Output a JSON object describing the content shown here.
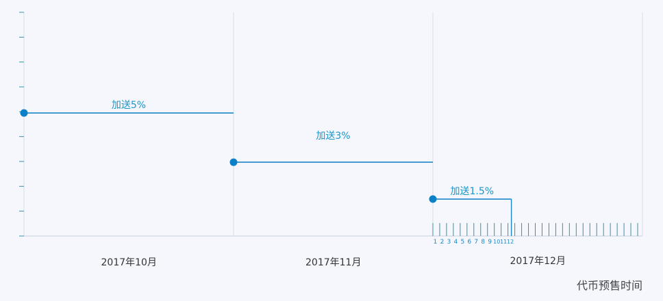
{
  "chart_data": {
    "type": "line",
    "x_months": [
      "2017年10月",
      "2017年11月",
      "2017年12月"
    ],
    "xlabel": "代币预售时间",
    "ylabel": "",
    "y_unit": "%",
    "ylim": [
      0,
      9
    ],
    "grid": "vertical month dividers",
    "series": [
      {
        "label": "加送5%",
        "bonus": 5,
        "start": "2017-10-01",
        "end": "2017-11-01"
      },
      {
        "label": "加送3%",
        "bonus": 3,
        "start": "2017-11-01",
        "end": "2017-12-01"
      },
      {
        "label": "加送1.5%",
        "bonus": 1.5,
        "start": "2017-12-01",
        "end": "2017-12-12"
      }
    ],
    "day_ticks_labeled": [
      "1",
      "2",
      "3",
      "4",
      "5",
      "6",
      "7",
      "8",
      "9",
      "10",
      "11",
      "12"
    ],
    "december_days": 31,
    "y_tick_count": 9
  },
  "colors": {
    "line": "#1a86c9",
    "marker": "#0a80c8",
    "label": "#1a95c8",
    "axis": "#3a8fa3",
    "grid": "#d8dde6",
    "background": "#f5f7fc"
  }
}
